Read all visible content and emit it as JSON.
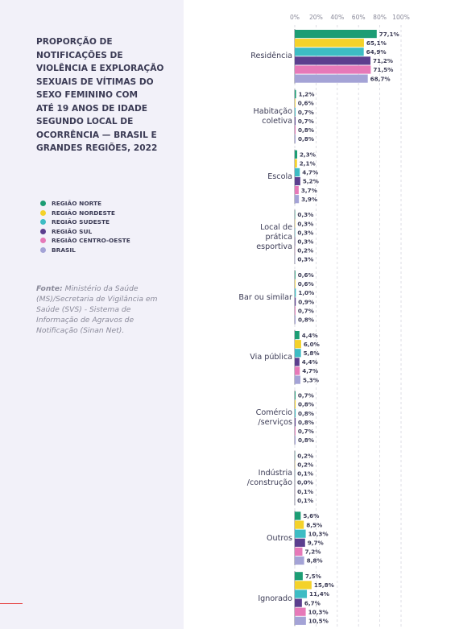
{
  "chart_data": {
    "type": "bar",
    "orientation": "horizontal",
    "title": "PROPORÇÃO DE\nNOTIFICAÇÕES DE\nVIOLÊNCIA E EXPLORAÇÃO\nSEXUAIS DE VÍTIMAS DO\nSEXO FEMININO COM\nATÉ 19 ANOS DE IDADE\nSEGUNDO LOCAL DE\nOCORRÊNCIA — BRASIL E\nGRANDES REGIÕES, 2022",
    "source_label": "Fonte:",
    "source": "Ministério da Saúde (MS)/Secretaria de Vigilância em Saúde (SVS) - Sistema de Informação de Agravos de Notificação (Sinan Net).",
    "categories": [
      "Residência",
      "Habitação\ncoletiva",
      "Escola",
      "Local de\nprática\nesportiva",
      "Bar ou similar",
      "Via pública",
      "Comércio\n/serviços",
      "Indústria\n/construção",
      "Outros",
      "Ignorado"
    ],
    "series": [
      {
        "name": "REGIÃO NORTE",
        "color": "#1c9d74",
        "values": [
          77.1,
          1.2,
          2.3,
          0.3,
          0.6,
          4.4,
          0.7,
          0.2,
          5.6,
          7.5
        ],
        "value_labels": [
          "77,1%",
          "1,2%",
          "2,3%",
          "0,3%",
          "0,6%",
          "4,4%",
          "0,7%",
          "0,2%",
          "5,6%",
          "7,5%"
        ]
      },
      {
        "name": "REGIÃO NORDESTE",
        "color": "#f4d22a",
        "values": [
          65.1,
          0.6,
          2.1,
          0.3,
          0.6,
          6.0,
          0.8,
          0.2,
          8.5,
          15.8
        ],
        "value_labels": [
          "65,1%",
          "0,6%",
          "2,1%",
          "0,3%",
          "0,6%",
          "6,0%",
          "0,8%",
          "0,2%",
          "8,5%",
          "15,8%"
        ]
      },
      {
        "name": "REGIÃO SUDESTE",
        "color": "#3dbcc4",
        "values": [
          64.9,
          0.7,
          4.7,
          0.3,
          1.0,
          5.8,
          0.8,
          0.1,
          10.3,
          11.4
        ],
        "value_labels": [
          "64,9%",
          "0,7%",
          "4,7%",
          "0,3%",
          "1,0%",
          "5,8%",
          "0,8%",
          "0,1%",
          "10,3%",
          "11,4%"
        ]
      },
      {
        "name": "REGIÃO SUL",
        "color": "#5b3e8e",
        "values": [
          71.2,
          0.7,
          5.2,
          0.3,
          0.9,
          4.4,
          0.8,
          0.0,
          9.7,
          6.7
        ],
        "value_labels": [
          "71,2%",
          "0,7%",
          "5,2%",
          "0,3%",
          "0,9%",
          "4,4%",
          "0,8%",
          "0,0%",
          "9,7%",
          "6,7%"
        ]
      },
      {
        "name": "REGIÃO CENTRO-OESTE",
        "color": "#e679b8",
        "values": [
          71.5,
          0.8,
          3.7,
          0.2,
          0.7,
          4.7,
          0.7,
          0.1,
          7.2,
          10.3
        ],
        "value_labels": [
          "71,5%",
          "0,8%",
          "3,7%",
          "0,2%",
          "0,7%",
          "4,7%",
          "0,7%",
          "0,1%",
          "7,2%",
          "10,3%"
        ]
      },
      {
        "name": "BRASIL",
        "color": "#a4a3d6",
        "values": [
          68.7,
          0.8,
          3.9,
          0.3,
          0.8,
          5.3,
          0.8,
          0.1,
          8.8,
          10.5
        ],
        "value_labels": [
          "68,7%",
          "0,8%",
          "3,9%",
          "0,3%",
          "0,8%",
          "5,3%",
          "0,8%",
          "0,1%",
          "8,8%",
          "10,5%"
        ]
      }
    ],
    "xlim": [
      0,
      100
    ],
    "xticks": [
      {
        "value": 0,
        "label": "0%"
      },
      {
        "value": 20,
        "label": "20%"
      },
      {
        "value": 40,
        "label": "40%"
      },
      {
        "value": 60,
        "label": "60%"
      },
      {
        "value": 80,
        "label": "80%"
      },
      {
        "value": 100,
        "label": "100%"
      }
    ],
    "grid": true
  }
}
